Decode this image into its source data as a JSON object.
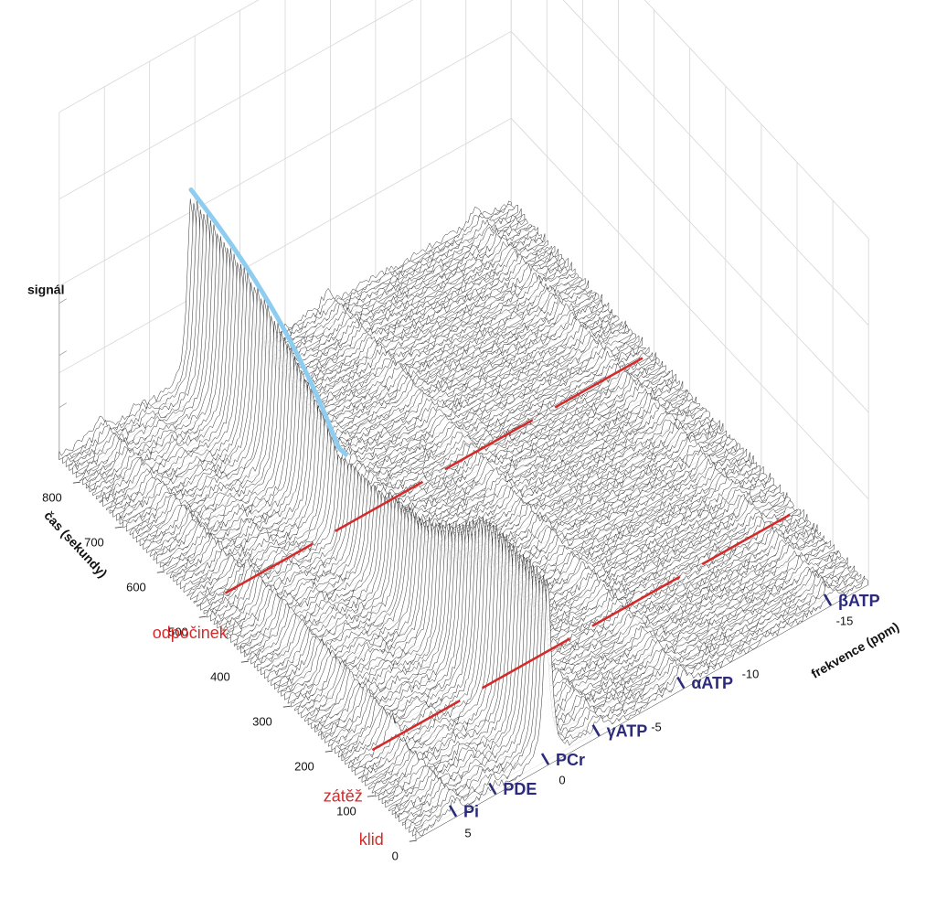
{
  "chart_data": {
    "type": "waterfall",
    "z_label": "signál",
    "y_label": "čas (sekundy)",
    "x_label": "frekvence (ppm)",
    "xlim": [
      7,
      -17
    ],
    "ylim": [
      0,
      850
    ],
    "xticks": [
      5,
      0,
      -5,
      -10,
      -15
    ],
    "yticks": [
      0,
      100,
      200,
      300,
      400,
      500,
      600,
      700,
      800
    ],
    "peaks": [
      {
        "label": "Pi",
        "ppm": 4.9
      },
      {
        "label": "PDE",
        "ppm": 2.8
      },
      {
        "label": "PCr",
        "ppm": 0
      },
      {
        "label": "γATP",
        "ppm": -2.7
      },
      {
        "label": "αATP",
        "ppm": -7.2
      },
      {
        "label": "βATP",
        "ppm": -15
      }
    ],
    "phases": [
      "klid",
      "zátěž",
      "odpočinek"
    ],
    "phase_boundaries": [
      150,
      500
    ],
    "boundary_color": "#d42a2a",
    "peak_color": "#2b2a7c",
    "highlight_color": "#8ecdf0"
  }
}
